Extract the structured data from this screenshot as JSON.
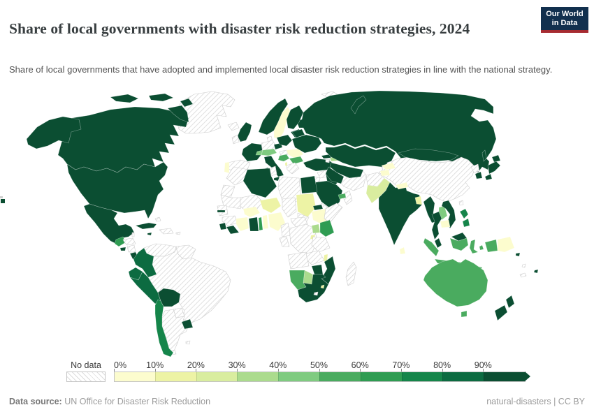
{
  "header": {
    "title": "Share of local governments with disaster risk reduction strategies, 2024",
    "subtitle": "Share of local governments that have adopted and implemented local disaster risk reduction strategies in line with the national strategy.",
    "logo_line1": "Our World",
    "logo_line2": "in Data",
    "logo_colors": {
      "background": "#12304e",
      "underline": "#a62b31"
    }
  },
  "legend": {
    "no_data_label": "No data",
    "ticks": [
      "0%",
      "10%",
      "20%",
      "30%",
      "40%",
      "50%",
      "60%",
      "70%",
      "80%",
      "90%"
    ]
  },
  "footer": {
    "source_label": "Data source:",
    "source_text": " UN Office for Disaster Risk Reduction",
    "license_text": "natural-disasters | CC BY"
  },
  "chart_data": {
    "type": "choropleth_map",
    "title": "Share of local governments with disaster risk reduction strategies, 2024",
    "unit": "% of local governments (decile bins; 0 = no data, 1 = 0-10%, 10 = 90-100%)",
    "bin_labels": [
      "0-10%",
      "10-20%",
      "20-30%",
      "30-40%",
      "40-50%",
      "50-60%",
      "60-70%",
      "70-80%",
      "80-90%",
      "90-100%"
    ],
    "palette": [
      "#fcfcce",
      "#edf3a5",
      "#d9ed9f",
      "#abdb8d",
      "#7fcb80",
      "#4aab5f",
      "#2f9c52",
      "#15854a",
      "#0c6b41",
      "#0b4e32"
    ],
    "no_data_style": "white with light gray diagonal hatching",
    "countries": {
      "Canada": 10,
      "United States": 10,
      "Greenland": 0,
      "Iceland": 0,
      "Mexico": 10,
      "Belize": 0,
      "Guatemala": 7,
      "Honduras": 0,
      "El Salvador": 10,
      "Nicaragua": 0,
      "Costa Rica": 10,
      "Panama": 10,
      "Cuba": 10,
      "Jamaica": 10,
      "Hispaniola": 0,
      "Puerto Rico": 0,
      "Bahamas": 0,
      "Trinidad and Tobago": 10,
      "Colombia": 9,
      "Venezuela": 0,
      "Guyana": 0,
      "Ecuador": 9,
      "Peru": 9,
      "Bolivia": 10,
      "Brazil": 0,
      "Paraguay": 0,
      "Uruguay": 10,
      "Argentina": 0,
      "Chile": 8,
      "Falkland Islands": 0,
      "Norway": 10,
      "Sweden": 1,
      "Finland": 10,
      "Baltic states": 10,
      "Denmark": 0,
      "United Kingdom": 10,
      "Ireland": 0,
      "Germany": 0,
      "France": 10,
      "Spain": 0,
      "Portugal": 1,
      "Italy": 10,
      "Switzerland": 5,
      "Austria": 5,
      "Czechia": 10,
      "Poland": 10,
      "Hungary": 0,
      "Romania": 1,
      "Bulgaria": 6,
      "Serbia": 6,
      "Greece": 0,
      "Albania": 2,
      "Belarus": 10,
      "Ukraine": 10,
      "Russia": 10,
      "Svalbard": 0,
      "Turkey": 10,
      "Georgia": 10,
      "Azerbaijan": 4,
      "Armenia": 0,
      "Syria": 0,
      "Jordan": 0,
      "Iraq": 10,
      "Iran": 0,
      "Saudi Arabia": 10,
      "Yemen": 0,
      "Oman": 0,
      "United Arab Emirates": 6,
      "Kazakhstan": 10,
      "Uzbekistan": 10,
      "Turkmenistan": 10,
      "Kyrgyzstan": 1,
      "Tajikistan": 1,
      "Afghanistan": 0,
      "Pakistan": 3,
      "India": 10,
      "Nepal": 1,
      "Bangladesh": 2,
      "Sri Lanka": 1,
      "China": 0,
      "Taiwan": 0,
      "Mongolia": 10,
      "North Korea": 0,
      "South Korea": 10,
      "Japan": 10,
      "Myanmar": 10,
      "Thailand": 10,
      "Laos": 5,
      "Cambodia": 1,
      "Vietnam": 10,
      "Malaysia": 10,
      "Indonesia": 6,
      "Philippines": 8,
      "Papua New Guinea": 1,
      "Solomon Islands": 10,
      "Vanuatu": 0,
      "Fiji": 10,
      "New Caledonia": 0,
      "Australia": 6,
      "New Zealand": 10,
      "Morocco": 0,
      "Western Sahara": 0,
      "Mauritania": 0,
      "Mali": 0,
      "Senegal": 0,
      "Gambia": 10,
      "Guinea": 0,
      "Sierra Leone": 10,
      "Liberia": 10,
      "Cote d'Ivoire": 1,
      "Burkina Faso": 1,
      "Ghana": 10,
      "Togo": 7,
      "Benin": 1,
      "Niger": 2,
      "Nigeria": 1,
      "Chad": 0,
      "Sudan": 2,
      "South Sudan": 0,
      "Eritrea": 10,
      "Ethiopia": 1,
      "Somalia": 0,
      "Cameroon": 0,
      "Central African Republic": 0,
      "Congo": 0,
      "DR Congo": 0,
      "Uganda": 4,
      "Kenya": 7,
      "Rwanda-Burundi": 2,
      "Tanzania": 0,
      "Angola": 0,
      "Zambia": 0,
      "Malawi": 2,
      "Mozambique": 10,
      "Zimbabwe": 10,
      "Botswana": 4,
      "Namibia": 6,
      "South Africa": 10,
      "Lesotho": 0,
      "Eswatini": 2,
      "Madagascar": 0,
      "Tunisia": 0,
      "Algeria": 10,
      "Libya": 0,
      "Egypt": 10
    }
  }
}
